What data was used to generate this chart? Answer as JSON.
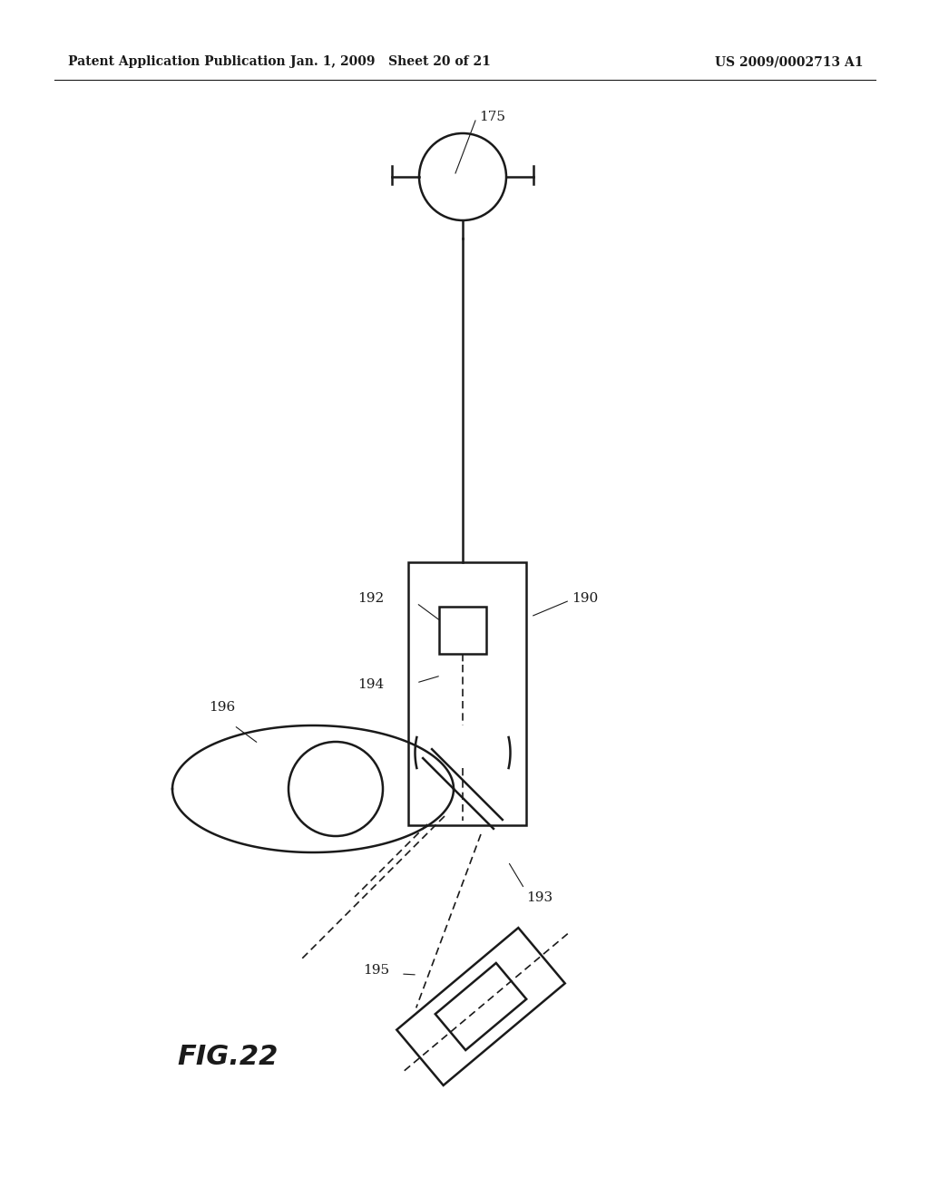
{
  "header_left": "Patent Application Publication",
  "header_mid": "Jan. 1, 2009   Sheet 20 of 21",
  "header_right": "US 2009/0002713 A1",
  "fig_label": "FIG.22",
  "background": "#ffffff",
  "line_color": "#1a1a1a"
}
